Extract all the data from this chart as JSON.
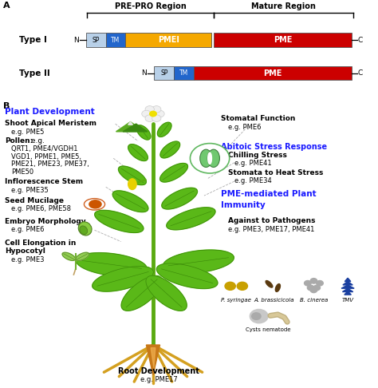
{
  "fig_width": 4.74,
  "fig_height": 4.86,
  "dpi": 100,
  "bg_color": "#ffffff",
  "panel_A": {
    "header_prepro": "PRE-PRO Region",
    "header_mature": "Mature Region",
    "type1_label": "Type I",
    "type2_label": "Type II",
    "sp_color": "#b8d0e8",
    "tm_color": "#2266cc",
    "pmei_color": "#f5a800",
    "pme_color": "#cc0000"
  },
  "panel_B": {
    "plant_dev_color": "#1a1aff",
    "plant_dev_text": "Plant Development",
    "abiotic_color": "#1a1aff",
    "abiotic_text": "Abitoic Stress Response",
    "immunity_color": "#1a1aff",
    "stem_color": "#5aaa10",
    "root_color": "#d4a020",
    "leaf_color": "#5ab818",
    "leaf_edge": "#3a8808"
  }
}
